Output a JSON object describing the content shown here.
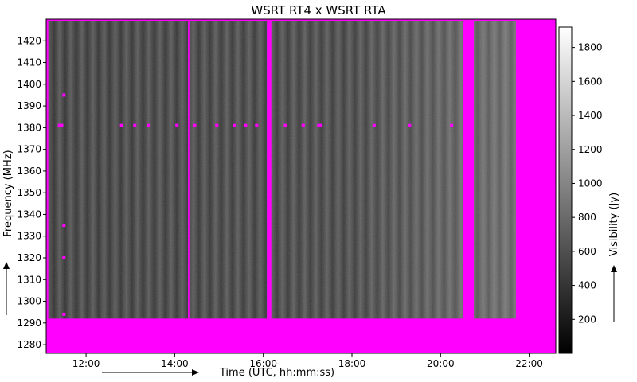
{
  "chart_data": {
    "type": "heatmap",
    "title": "WSRT RT4 x WSRT RTA",
    "xlabel": "Time (UTC, hh:mm:ss)",
    "ylabel": "Frequency (MHz)",
    "colorbar_label": "Visibility (Jy)",
    "x_range_hours": [
      11.1,
      22.6
    ],
    "x_ticks": [
      {
        "value": 12,
        "label": "12:00"
      },
      {
        "value": 14,
        "label": "14:00"
      },
      {
        "value": 16,
        "label": "16:00"
      },
      {
        "value": 18,
        "label": "18:00"
      },
      {
        "value": 20,
        "label": "20:00"
      },
      {
        "value": 22,
        "label": "22:00"
      }
    ],
    "y_range": [
      1276,
      1430
    ],
    "y_ticks": [
      1280,
      1290,
      1300,
      1310,
      1320,
      1330,
      1340,
      1350,
      1360,
      1370,
      1380,
      1390,
      1400,
      1410,
      1420
    ],
    "colorbar_range": [
      0,
      1920
    ],
    "colorbar_ticks": [
      200,
      400,
      600,
      800,
      1000,
      1200,
      1400,
      1600,
      1800
    ],
    "colormap": "grayscale",
    "flag_color": "#ff00ff",
    "data_extent": {
      "time_start": 11.15,
      "time_end": 21.7,
      "freq_start": 1292,
      "freq_end": 1429
    },
    "flagged_time_bands": [
      {
        "start": 14.3,
        "end": 14.33
      },
      {
        "start": 16.08,
        "end": 16.18
      },
      {
        "start": 20.5,
        "end": 20.75
      },
      {
        "start": 21.7,
        "end": 22.6
      }
    ],
    "flagged_freq_bands": [
      {
        "start": 1276,
        "end": 1292
      }
    ],
    "rfi_frequencies_mhz": [
      1381,
      1395,
      1335,
      1320,
      1294
    ]
  }
}
